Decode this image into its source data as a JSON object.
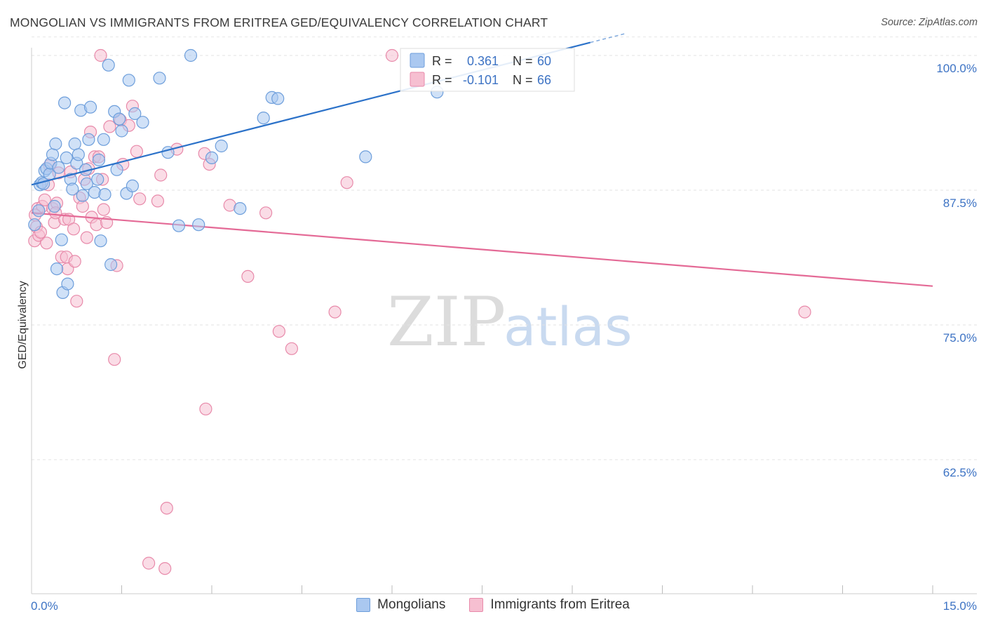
{
  "header": {
    "title": "MONGOLIAN VS IMMIGRANTS FROM ERITREA GED/EQUIVALENCY CORRELATION CHART",
    "source": "Source: ZipAtlas.com"
  },
  "watermark": {
    "zip": "ZIP",
    "atlas": "atlas"
  },
  "colors": {
    "blue_fill": "#aac8f0",
    "blue_stroke": "#6d9edb",
    "blue_line": "#2c72c9",
    "pink_fill": "#f6bfd1",
    "pink_stroke": "#e88aaa",
    "pink_line": "#e46a96",
    "axis_label": "#3d73c4"
  },
  "chart_data": {
    "type": "scatter",
    "title": "MONGOLIAN VS IMMIGRANTS FROM ERITREA GED/EQUIVALENCY CORRELATION CHART",
    "xlabel": "",
    "ylabel": "GED/Equivalency",
    "xlim": [
      0,
      15
    ],
    "ylim": [
      51.5,
      102.5
    ],
    "x_tick_labels": [
      "0.0%",
      "15.0%"
    ],
    "y_ticks": [
      62.5,
      75.0,
      87.5,
      100.0
    ],
    "y_tick_labels": [
      "62.5%",
      "75.0%",
      "87.5%",
      "100.0%"
    ],
    "grid": true,
    "legend_position": "top-center",
    "stats": [
      {
        "r_label": "R =",
        "r_value": "0.361",
        "n_label": "N =",
        "n_value": "60"
      },
      {
        "r_label": "R =",
        "r_value": "-0.101",
        "n_label": "N =",
        "n_value": "66"
      }
    ],
    "series": [
      {
        "name": "Mongolians",
        "trend": {
          "x": [
            0.0,
            9.3
          ],
          "y": [
            88.0,
            101.2
          ]
        },
        "points": [
          [
            0.05,
            84.3
          ],
          [
            0.12,
            85.6
          ],
          [
            0.14,
            88.0
          ],
          [
            0.17,
            88.2
          ],
          [
            0.2,
            88.1
          ],
          [
            0.22,
            89.3
          ],
          [
            0.25,
            89.5
          ],
          [
            0.3,
            89.0
          ],
          [
            0.32,
            90.0
          ],
          [
            0.35,
            90.8
          ],
          [
            0.38,
            86.0
          ],
          [
            0.4,
            91.8
          ],
          [
            0.42,
            80.2
          ],
          [
            0.45,
            89.6
          ],
          [
            0.5,
            82.9
          ],
          [
            0.52,
            78.0
          ],
          [
            0.55,
            95.6
          ],
          [
            0.58,
            90.5
          ],
          [
            0.6,
            78.8
          ],
          [
            0.65,
            88.5
          ],
          [
            0.68,
            87.6
          ],
          [
            0.72,
            91.8
          ],
          [
            0.75,
            90.0
          ],
          [
            0.78,
            90.8
          ],
          [
            0.82,
            94.9
          ],
          [
            0.85,
            87.0
          ],
          [
            0.9,
            89.4
          ],
          [
            0.92,
            88.1
          ],
          [
            0.95,
            92.2
          ],
          [
            0.98,
            95.2
          ],
          [
            1.05,
            87.3
          ],
          [
            1.1,
            88.5
          ],
          [
            1.12,
            90.3
          ],
          [
            1.15,
            82.8
          ],
          [
            1.2,
            92.2
          ],
          [
            1.22,
            87.1
          ],
          [
            1.28,
            99.1
          ],
          [
            1.32,
            80.6
          ],
          [
            1.38,
            94.8
          ],
          [
            1.42,
            89.4
          ],
          [
            1.46,
            94.1
          ],
          [
            1.5,
            93.0
          ],
          [
            1.58,
            87.2
          ],
          [
            1.62,
            97.7
          ],
          [
            1.68,
            87.9
          ],
          [
            1.72,
            94.6
          ],
          [
            1.85,
            93.8
          ],
          [
            2.13,
            97.9
          ],
          [
            2.27,
            91.0
          ],
          [
            2.45,
            84.2
          ],
          [
            2.65,
            100.0
          ],
          [
            2.78,
            84.3
          ],
          [
            3.0,
            90.5
          ],
          [
            3.16,
            91.6
          ],
          [
            3.47,
            85.8
          ],
          [
            3.86,
            94.2
          ],
          [
            4.0,
            96.1
          ],
          [
            4.1,
            96.0
          ],
          [
            5.56,
            90.6
          ],
          [
            6.75,
            96.6
          ]
        ]
      },
      {
        "name": "Immigrants from Eritrea",
        "trend": {
          "x": [
            0.0,
            15.0
          ],
          "y": [
            85.4,
            78.6
          ]
        },
        "points": [
          [
            0.05,
            82.8
          ],
          [
            0.08,
            84.1
          ],
          [
            0.1,
            85.8
          ],
          [
            0.12,
            83.3
          ],
          [
            0.15,
            83.6
          ],
          [
            0.18,
            86.0
          ],
          [
            0.22,
            86.6
          ],
          [
            0.25,
            82.6
          ],
          [
            0.28,
            88.0
          ],
          [
            0.3,
            89.8
          ],
          [
            0.35,
            85.8
          ],
          [
            0.38,
            84.5
          ],
          [
            0.42,
            86.3
          ],
          [
            0.45,
            89.1
          ],
          [
            0.5,
            81.3
          ],
          [
            0.55,
            84.8
          ],
          [
            0.58,
            81.3
          ],
          [
            0.6,
            80.2
          ],
          [
            0.62,
            84.8
          ],
          [
            0.65,
            89.2
          ],
          [
            0.7,
            83.9
          ],
          [
            0.72,
            80.9
          ],
          [
            0.75,
            77.2
          ],
          [
            0.8,
            86.8
          ],
          [
            0.85,
            86.0
          ],
          [
            0.88,
            88.5
          ],
          [
            0.92,
            83.1
          ],
          [
            0.95,
            89.5
          ],
          [
            0.98,
            92.9
          ],
          [
            1.0,
            85.0
          ],
          [
            1.05,
            90.6
          ],
          [
            1.08,
            84.3
          ],
          [
            1.12,
            90.6
          ],
          [
            1.15,
            100.0
          ],
          [
            1.18,
            88.5
          ],
          [
            1.2,
            85.7
          ],
          [
            1.25,
            84.5
          ],
          [
            1.3,
            93.4
          ],
          [
            1.38,
            71.8
          ],
          [
            1.42,
            80.5
          ],
          [
            1.48,
            94.0
          ],
          [
            1.52,
            89.9
          ],
          [
            1.62,
            93.5
          ],
          [
            1.68,
            95.3
          ],
          [
            1.75,
            91.1
          ],
          [
            1.8,
            86.7
          ],
          [
            1.95,
            52.9
          ],
          [
            2.1,
            86.5
          ],
          [
            2.15,
            88.9
          ],
          [
            2.25,
            58.0
          ],
          [
            2.22,
            52.4
          ],
          [
            2.42,
            91.3
          ],
          [
            2.88,
            90.9
          ],
          [
            2.9,
            67.2
          ],
          [
            2.96,
            89.9
          ],
          [
            3.3,
            86.1
          ],
          [
            3.6,
            79.5
          ],
          [
            3.9,
            85.4
          ],
          [
            4.12,
            74.4
          ],
          [
            4.33,
            72.8
          ],
          [
            5.05,
            76.2
          ],
          [
            5.25,
            88.2
          ],
          [
            6.0,
            100.0
          ],
          [
            12.87,
            76.2
          ],
          [
            0.06,
            85.2
          ],
          [
            0.4,
            85.4
          ]
        ]
      }
    ]
  }
}
